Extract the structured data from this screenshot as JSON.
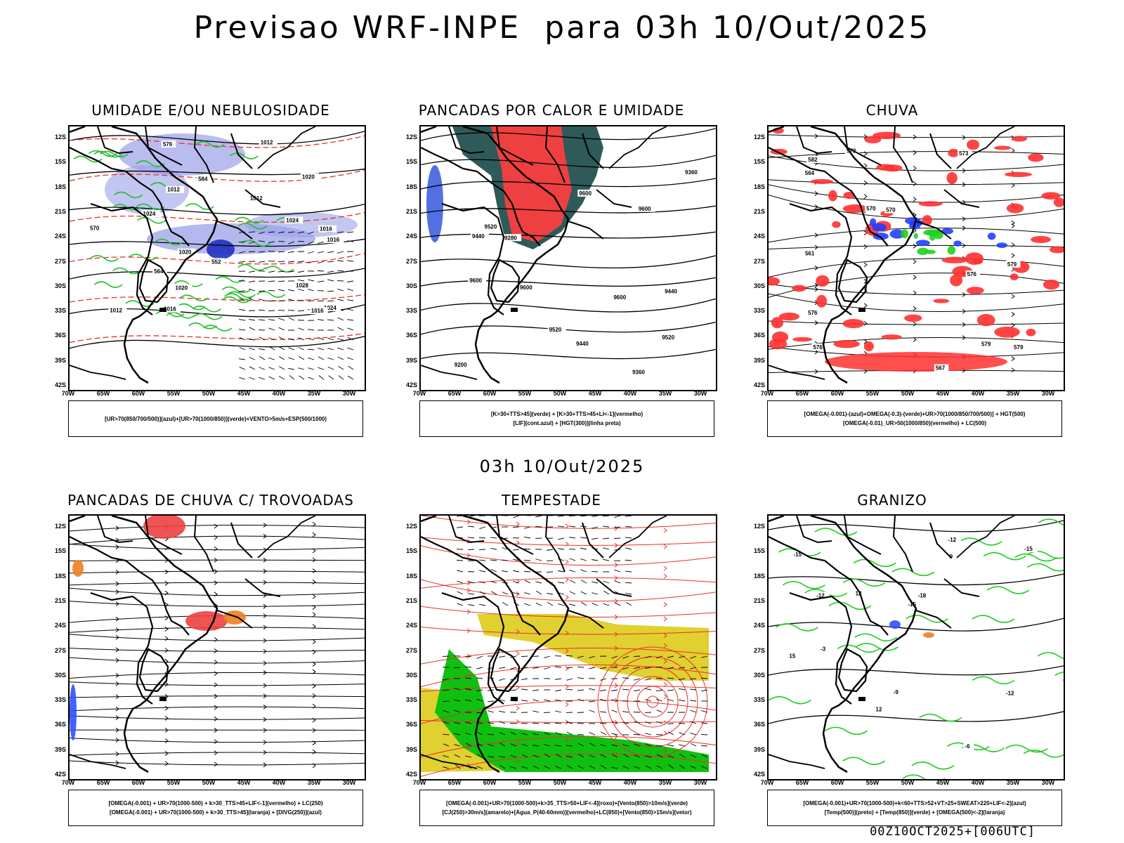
{
  "title": "Previsao WRF-INPE  para 03h 10/Out/2025",
  "row2_date": "03h 10/Out/2025",
  "footer": "00Z10OCT2025+[006UTC]",
  "lat_labels": [
    "12S",
    "15S",
    "18S",
    "21S",
    "24S",
    "27S",
    "30S",
    "33S",
    "36S",
    "39S",
    "42S"
  ],
  "lon_labels": [
    "70W",
    "65W",
    "60W",
    "55W",
    "50W",
    "45W",
    "40W",
    "35W",
    "30W"
  ],
  "panels": [
    {
      "title": "UMIDADE E/OU NEBULOSIDADE",
      "legend": [
        "[UR>70(850/700/500)](azul)+[UR>70(1000/850)](verde)+VENTO>5m/s+ESP(500/1000)"
      ],
      "contour_labels": [
        "1012",
        "1016",
        "1012",
        "1016",
        "1020",
        "1024",
        "1020",
        "1012",
        "1016",
        "1020",
        "1024",
        "1028",
        "1024",
        "1016",
        "1012",
        "552",
        "564",
        "570",
        "576",
        "584"
      ]
    },
    {
      "title": "PANCADAS POR CALOR E UMIDADE",
      "legend": [
        "[K>30+TTS>45](verde) + [K>30+TTS>45+LI<-1](vermelho)",
        "[LIF](cont.azul) + [HGT(300)](linha preta)"
      ],
      "contour_labels": [
        "9600",
        "9600",
        "9600",
        "9600",
        "9520",
        "9520",
        "9600",
        "9520",
        "9440",
        "9440",
        "9440",
        "9360",
        "9360",
        "9280",
        "9200"
      ]
    },
    {
      "title": "CHUVA",
      "legend": [
        "[OMEGA(-0.001)-(azul)+OMEGA(-0.3)-(verde)+UR>70(1000/850/700/500)] + HGT(500)",
        "[OMEGA(-0.01)_UR>50(1000/850)(vermelho) + LC(500)"
      ],
      "contour_labels": [
        "576",
        "579",
        "576",
        "573",
        "570",
        "579",
        "576",
        "573",
        "570",
        "567",
        "564",
        "561",
        "582",
        "579"
      ]
    },
    {
      "title": "PANCADAS DE CHUVA C/ TROVOADAS",
      "legend": [
        "[OMEGA(-0.001) + UR>70(1000-500) + k>30_TTS>45+LIF<-1](vermelho) + LC(250)",
        "[OMEGA(-0.001) + UR>70(1000-500) + k>30_TTS>45](laranja) + [DIVG(250)](azul)"
      ],
      "contour_labels": []
    },
    {
      "title": "TEMPESTADE",
      "legend": [
        "[OMEGA(-0.001)+UR>70(1000-500)+k>35_TTS>50+LIF<-4](roxo)+[Vento(850)>10m/s](verde)",
        "[CJ(250)>30m/s](amarelo)+[Agua_P(40-60mm)](vermelho)+LC(850)+[Vento(850)>15m/s](vetor)"
      ],
      "contour_labels": []
    },
    {
      "title": "GRANIZO",
      "legend": [
        "[OMEGA(-0.001)+UR>70(1000-500)+k<60+TTS>52+VT>25+SWEAT>220+LIF<-2](azul)",
        "[Temp(500)](preto) + [Temp(850)](verde) + [OMEGA(500)<-2](laranja)"
      ],
      "contour_labels": [
        "12",
        "15",
        "12",
        "9",
        "-12",
        "-15",
        "-12",
        "-15",
        "-18",
        "-15",
        "-12",
        "-9",
        "-6",
        "-3"
      ]
    }
  ],
  "colors": {
    "humidity_blue": "#9aa0e8",
    "humidity_green": "#22c02a",
    "pressure_red": "#e8322c",
    "heat_red": "#ee4040",
    "heat_teal": "#2f5a5a",
    "rain_red": "#ff3030",
    "rain_blue": "#2040ff",
    "rain_green": "#20d020",
    "thunder_orange": "#ee8020",
    "jet_yellow": "#e0d030",
    "wind_green": "#10c010",
    "temp_green": "#22cc22"
  }
}
